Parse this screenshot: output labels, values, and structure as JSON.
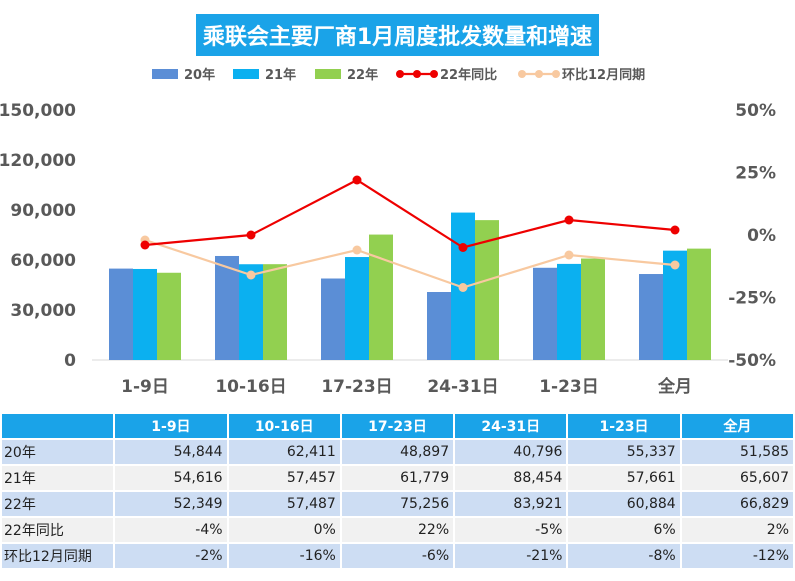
{
  "chart_data": {
    "type": "bar",
    "title": "乘联会主要厂商1月周度批发数量和增速",
    "categories": [
      "1-9日",
      "10-16日",
      "17-23日",
      "24-31日",
      "1-23日",
      "全月"
    ],
    "series": [
      {
        "name": "20年",
        "kind": "bar",
        "color": "#5b8ed6",
        "values": [
          54844,
          62411,
          48897,
          40796,
          55337,
          51585
        ]
      },
      {
        "name": "21年",
        "kind": "bar",
        "color": "#0bb0f0",
        "values": [
          54616,
          57457,
          61779,
          88454,
          57661,
          65607
        ]
      },
      {
        "name": "22年",
        "kind": "bar",
        "color": "#92d050",
        "values": [
          52349,
          57487,
          75256,
          83921,
          60884,
          66829
        ]
      }
    ],
    "line_series": [
      {
        "name": "22年同比",
        "color": "#ee0000",
        "values": [
          -4,
          0,
          22,
          -5,
          6,
          2
        ]
      },
      {
        "name": "环比12月同期",
        "color": "#f8c9a0",
        "values": [
          -2,
          -16,
          -6,
          -21,
          -8,
          -12
        ]
      }
    ],
    "y_left": {
      "ticks": [
        "0",
        "30,000",
        "60,000",
        "90,000",
        "120,000",
        "150,000"
      ],
      "min": 0,
      "max": 150000
    },
    "y_right": {
      "ticks": [
        "-50%",
        "-25%",
        "0%",
        "25%",
        "50%"
      ],
      "min": -50,
      "max": 50
    },
    "table": {
      "header": [
        "1-9日",
        "10-16日",
        "17-23日",
        "24-31日",
        "1-23日",
        "全月"
      ],
      "rows": [
        {
          "label": "20年",
          "cells": [
            "54,844",
            "62,411",
            "48,897",
            "40,796",
            "55,337",
            "51,585"
          ]
        },
        {
          "label": "21年",
          "cells": [
            "54,616",
            "57,457",
            "61,779",
            "88,454",
            "57,661",
            "65,607"
          ]
        },
        {
          "label": "22年",
          "cells": [
            "52,349",
            "57,487",
            "75,256",
            "83,921",
            "60,884",
            "66,829"
          ]
        },
        {
          "label": "22年同比",
          "cells": [
            "-4%",
            "0%",
            "22%",
            "-5%",
            "6%",
            "2%"
          ]
        },
        {
          "label": "环比12月同期",
          "cells": [
            "-2%",
            "-16%",
            "-6%",
            "-21%",
            "-8%",
            "-12%"
          ]
        }
      ]
    }
  }
}
